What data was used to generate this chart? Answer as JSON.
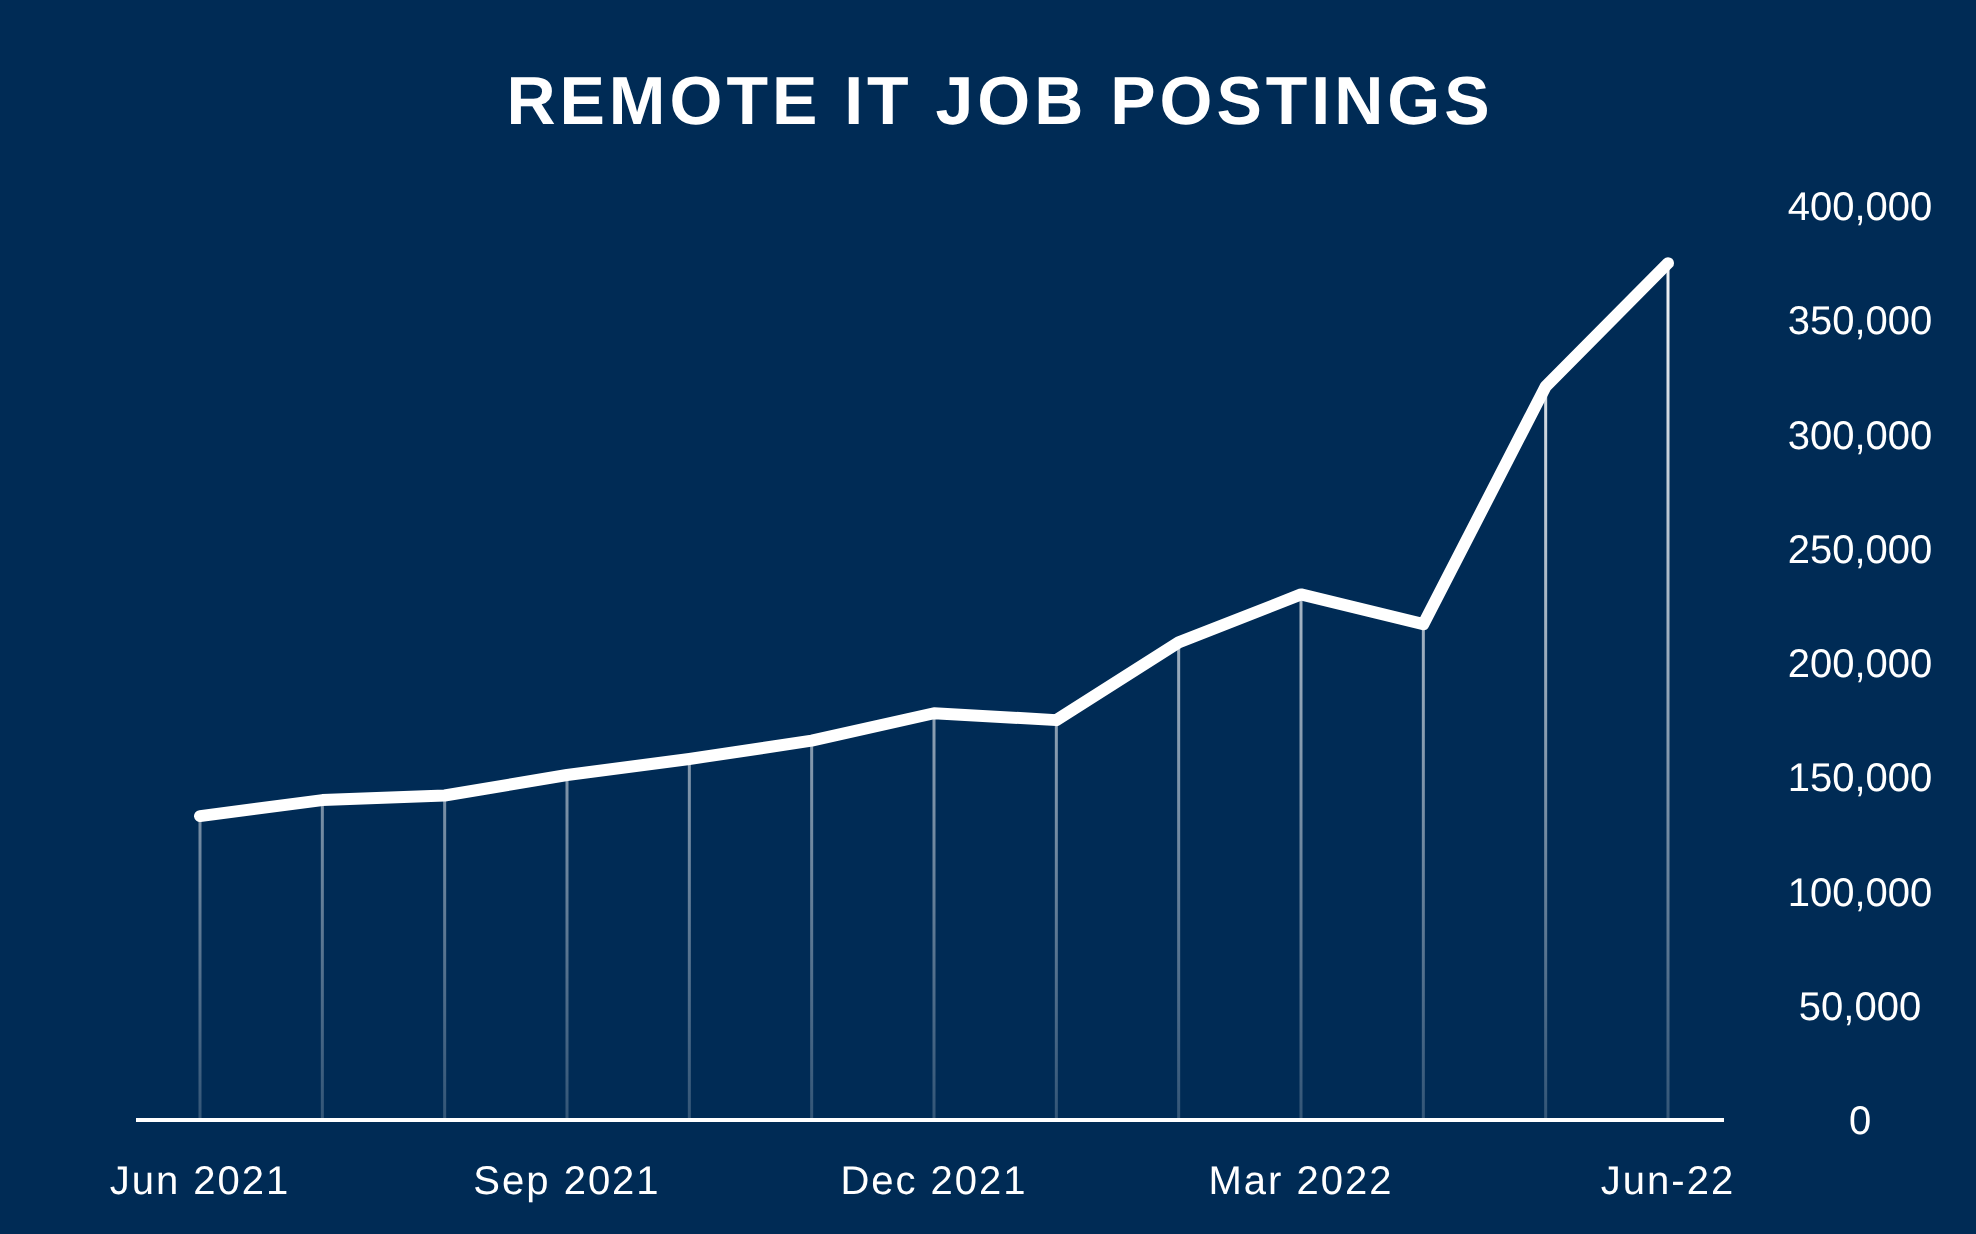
{
  "chart_data": {
    "type": "line",
    "title": "REMOTE IT JOB POSTINGS",
    "categories": [
      "Jun 2021",
      null,
      null,
      "Sep 2021",
      null,
      null,
      "Dec 2021",
      null,
      null,
      "Mar 2022",
      null,
      null,
      "Jun-22"
    ],
    "series": [
      {
        "type": "bar",
        "color": "#ffffff",
        "values": [
          133000,
          140000,
          142000,
          151000,
          158000,
          166000,
          178000,
          175000,
          209000,
          230000,
          217000,
          321000,
          375000
        ]
      },
      {
        "color": "#ffffff",
        "values": [
          133000,
          140000,
          142000,
          151000,
          158000,
          166000,
          178000,
          175000,
          209000,
          230000,
          217000,
          321000,
          375000
        ]
      }
    ],
    "ylim": [
      0,
      400000
    ],
    "yticks": [
      {
        "value": 0,
        "label": "0"
      },
      {
        "value": 50000,
        "label": "50,000"
      },
      {
        "value": 100000,
        "label": "100,000"
      },
      {
        "value": 150000,
        "label": "150,000"
      },
      {
        "value": 200000,
        "label": "200,000"
      },
      {
        "value": 250000,
        "label": "250,000"
      },
      {
        "value": 300000,
        "label": "300,000"
      },
      {
        "value": 350000,
        "label": "350,000"
      },
      {
        "value": 400000,
        "label": "400,000"
      }
    ],
    "grid": false,
    "marker": "none",
    "line_style": "solid"
  }
}
